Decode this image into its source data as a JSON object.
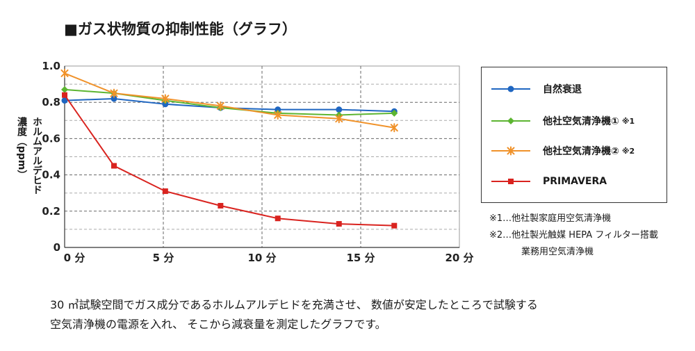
{
  "title": "■ガス状物質の抑制性能（グラフ）",
  "ylabel_lines": [
    "ホルムアルデヒド",
    "濃度（ppm）"
  ],
  "chart_data": {
    "type": "line",
    "title": "■ガス状物質の抑制性能（グラフ）",
    "xlabel": "",
    "ylabel": "ホルムアルデヒド濃度（ppm）",
    "xlim": [
      0,
      20
    ],
    "ylim": [
      0,
      1.0
    ],
    "xticks": [
      0,
      5,
      10,
      15,
      20
    ],
    "xtick_labels": [
      "0 分",
      "5 分",
      "10 分",
      "15 分",
      "20 分"
    ],
    "yticks": [
      0,
      0.2,
      0.4,
      0.6,
      0.8,
      1.0
    ],
    "ytick_labels": [
      "0",
      "0.2",
      "0.4",
      "0.6",
      "0.8",
      "1.0"
    ],
    "grid": true,
    "series": [
      {
        "name": "自然衰退",
        "color": "#1f66c1",
        "marker": "circle",
        "x": [
          0,
          2.5,
          5.1,
          7.9,
          10.8,
          13.9,
          16.7
        ],
        "y": [
          0.81,
          0.82,
          0.79,
          0.77,
          0.76,
          0.76,
          0.75
        ]
      },
      {
        "name": "他社空気清浄機①",
        "note": "※1",
        "color": "#5cb531",
        "marker": "diamond",
        "x": [
          0,
          2.5,
          5.1,
          7.9,
          10.8,
          13.9,
          16.7
        ],
        "y": [
          0.87,
          0.85,
          0.81,
          0.77,
          0.74,
          0.73,
          0.74
        ]
      },
      {
        "name": "他社空気清浄機②",
        "note": "※2",
        "color": "#f0922a",
        "marker": "star",
        "x": [
          0,
          2.5,
          5.1,
          7.9,
          10.8,
          13.9,
          16.7
        ],
        "y": [
          0.96,
          0.85,
          0.82,
          0.78,
          0.73,
          0.71,
          0.66
        ]
      },
      {
        "name": "PRIMAVERA",
        "color": "#d9231f",
        "marker": "square",
        "x": [
          0,
          2.5,
          5.1,
          7.9,
          10.8,
          13.9,
          16.7
        ],
        "y": [
          0.84,
          0.45,
          0.31,
          0.23,
          0.16,
          0.13,
          0.12
        ]
      }
    ]
  },
  "footnotes": [
    "※1…他社製家庭用空気清浄機",
    "※2…他社製光触媒 HEPA フィルター搭載",
    "業務用空気清浄機"
  ],
  "description": [
    "30 ㎥試験空間でガス成分であるホルムアルデヒドを充満させ、 数値が安定したところで試験する",
    "空気清浄機の電源を入れ、 そこから減衰量を測定したグラフです。"
  ]
}
